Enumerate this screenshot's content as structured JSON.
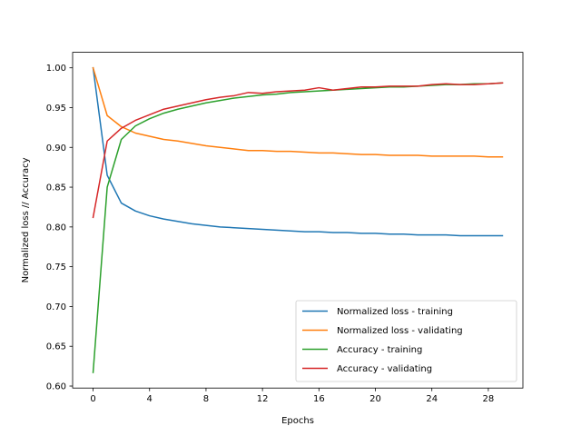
{
  "chart_data": {
    "type": "line",
    "title": "",
    "xlabel": "Epochs",
    "ylabel": "Normalized loss // Accuracy",
    "xlim": [
      -1.45,
      30.45
    ],
    "ylim": [
      0.5975,
      1.0195
    ],
    "xticks": [
      0,
      4,
      8,
      12,
      16,
      20,
      24,
      28
    ],
    "yticks": [
      "0.60",
      "0.65",
      "0.70",
      "0.75",
      "0.80",
      "0.85",
      "0.90",
      "0.95",
      "1.00"
    ],
    "grid": false,
    "legend_position": "bottom-right",
    "x": [
      0,
      1,
      2,
      3,
      4,
      5,
      6,
      7,
      8,
      9,
      10,
      11,
      12,
      13,
      14,
      15,
      16,
      17,
      18,
      19,
      20,
      21,
      22,
      23,
      24,
      25,
      26,
      27,
      28,
      29
    ],
    "series": [
      {
        "name": "Normalized loss - training",
        "color": "#1f77b4",
        "values": [
          1.0,
          0.865,
          0.83,
          0.82,
          0.814,
          0.81,
          0.807,
          0.804,
          0.802,
          0.8,
          0.799,
          0.798,
          0.797,
          0.796,
          0.795,
          0.794,
          0.794,
          0.793,
          0.793,
          0.792,
          0.792,
          0.791,
          0.791,
          0.79,
          0.79,
          0.79,
          0.789,
          0.789,
          0.789,
          0.789
        ]
      },
      {
        "name": "Normalized loss - validating",
        "color": "#ff7f0e",
        "values": [
          1.0,
          0.94,
          0.926,
          0.918,
          0.914,
          0.91,
          0.908,
          0.905,
          0.902,
          0.9,
          0.898,
          0.896,
          0.896,
          0.895,
          0.895,
          0.894,
          0.893,
          0.893,
          0.892,
          0.891,
          0.891,
          0.89,
          0.89,
          0.89,
          0.889,
          0.889,
          0.889,
          0.889,
          0.888,
          0.888
        ]
      },
      {
        "name": "Accuracy - training",
        "color": "#2ca02c",
        "values": [
          0.617,
          0.85,
          0.91,
          0.927,
          0.936,
          0.943,
          0.948,
          0.952,
          0.956,
          0.959,
          0.962,
          0.964,
          0.966,
          0.967,
          0.969,
          0.97,
          0.971,
          0.972,
          0.973,
          0.974,
          0.975,
          0.976,
          0.976,
          0.977,
          0.978,
          0.979,
          0.979,
          0.98,
          0.98,
          0.981
        ]
      },
      {
        "name": "Accuracy - validating",
        "color": "#d62728",
        "values": [
          0.812,
          0.908,
          0.924,
          0.934,
          0.941,
          0.948,
          0.952,
          0.956,
          0.96,
          0.963,
          0.965,
          0.969,
          0.968,
          0.97,
          0.971,
          0.972,
          0.975,
          0.972,
          0.974,
          0.976,
          0.976,
          0.977,
          0.977,
          0.977,
          0.979,
          0.98,
          0.979,
          0.979,
          0.98,
          0.981
        ]
      }
    ]
  }
}
